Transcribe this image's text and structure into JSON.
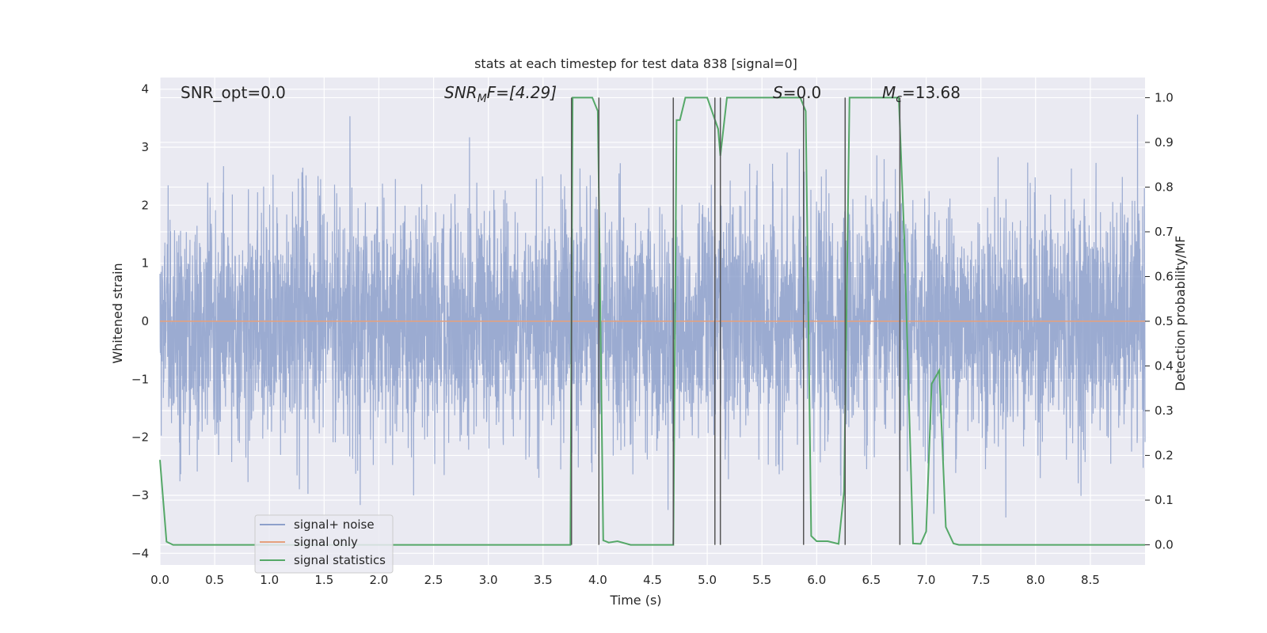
{
  "chart_data": {
    "type": "line",
    "title": "stats at each timestep for test data 838 [signal=0]",
    "xlabel": "Time (s)",
    "ylabel": "Whitened strain",
    "ylabel_right": "Detection probability/MF",
    "xlim": [
      0,
      9
    ],
    "ylim": [
      -4.2,
      4.2
    ],
    "ylim_right": [
      -0.045,
      1.045
    ],
    "x_ticks": [
      0.0,
      0.5,
      1.0,
      1.5,
      2.0,
      2.5,
      3.0,
      3.5,
      4.0,
      4.5,
      5.0,
      5.5,
      6.0,
      6.5,
      7.0,
      7.5,
      8.0,
      8.5
    ],
    "x_tick_labels": [
      "0.0",
      "0.5",
      "1.0",
      "1.5",
      "2.0",
      "2.5",
      "3.0",
      "3.5",
      "4.0",
      "4.5",
      "5.0",
      "5.5",
      "6.0",
      "6.5",
      "7.0",
      "7.5",
      "8.0",
      "8.5"
    ],
    "y_ticks": [
      -4,
      -3,
      -2,
      -1,
      0,
      1,
      2,
      3,
      4
    ],
    "y_tick_labels": [
      "−4",
      "−3",
      "−2",
      "−1",
      "0",
      "1",
      "2",
      "3",
      "4"
    ],
    "y_ticks_right": [
      0.0,
      0.1,
      0.2,
      0.3,
      0.4,
      0.5,
      0.6,
      0.7,
      0.8,
      0.9,
      1.0
    ],
    "y_tick_labels_right": [
      "0.0",
      "0.1",
      "0.2",
      "0.3",
      "0.4",
      "0.5",
      "0.6",
      "0.7",
      "0.8",
      "0.9",
      "1.0"
    ],
    "grid": true,
    "legend_position": "bottom-left",
    "annotations": {
      "snr_opt": "SNR_opt=0.0",
      "snr_mf_base": "SNR",
      "snr_mf_sub": "M",
      "snr_mf_rest": "F=[4.29]",
      "s_var": "S",
      "s_rest": "=0.0",
      "mc_var": "M",
      "mc_sub": "c",
      "mc_rest": "=13.68"
    },
    "series": [
      {
        "name": "signal+ noise",
        "color": "#8da0cb",
        "axis": "left",
        "style": "noise",
        "x_range": [
          0,
          9
        ],
        "amplitude_std": 1.0
      },
      {
        "name": "signal only",
        "color": "#e5a07d",
        "axis": "left",
        "x": [
          0,
          9
        ],
        "y": [
          0,
          0
        ]
      },
      {
        "name": "signal statistics",
        "color": "#55a868",
        "axis": "right",
        "x": [
          0.0,
          0.06,
          0.12,
          0.5,
          1.0,
          1.5,
          2.0,
          2.5,
          3.0,
          3.5,
          3.7,
          3.75,
          3.77,
          3.8,
          3.95,
          4.0,
          4.05,
          4.1,
          4.18,
          4.3,
          4.5,
          4.69,
          4.72,
          4.75,
          4.8,
          4.9,
          5.0,
          5.1,
          5.12,
          5.18,
          5.3,
          5.5,
          5.85,
          5.9,
          5.95,
          6.0,
          6.1,
          6.2,
          6.25,
          6.3,
          6.5,
          6.75,
          6.8,
          6.88,
          6.95,
          7.0,
          7.05,
          7.12,
          7.18,
          7.25,
          7.3,
          7.5,
          8.0,
          8.5,
          9.0
        ],
        "y": [
          0.19,
          0.007,
          0.0,
          0.0,
          0.0,
          0.0,
          0.0,
          0.0,
          0.0,
          0.0,
          0.0,
          0.0,
          1.0,
          1.0,
          1.0,
          0.97,
          0.01,
          0.005,
          0.008,
          0.0,
          0.0,
          0.0,
          0.95,
          0.95,
          1.0,
          1.0,
          1.0,
          0.93,
          0.87,
          1.0,
          1.0,
          1.0,
          1.0,
          0.97,
          0.02,
          0.008,
          0.008,
          0.002,
          0.12,
          1.0,
          1.0,
          1.0,
          0.69,
          0.003,
          0.002,
          0.03,
          0.36,
          0.39,
          0.04,
          0.003,
          0.0,
          0.0,
          0.0,
          0.0,
          0.0
        ]
      }
    ],
    "vertical_lines": {
      "color": "#555555",
      "x": [
        3.76,
        4.01,
        4.69,
        5.07,
        5.12,
        5.88,
        6.26,
        6.76
      ],
      "ymax": 1.0,
      "ymin": 0.0
    }
  }
}
